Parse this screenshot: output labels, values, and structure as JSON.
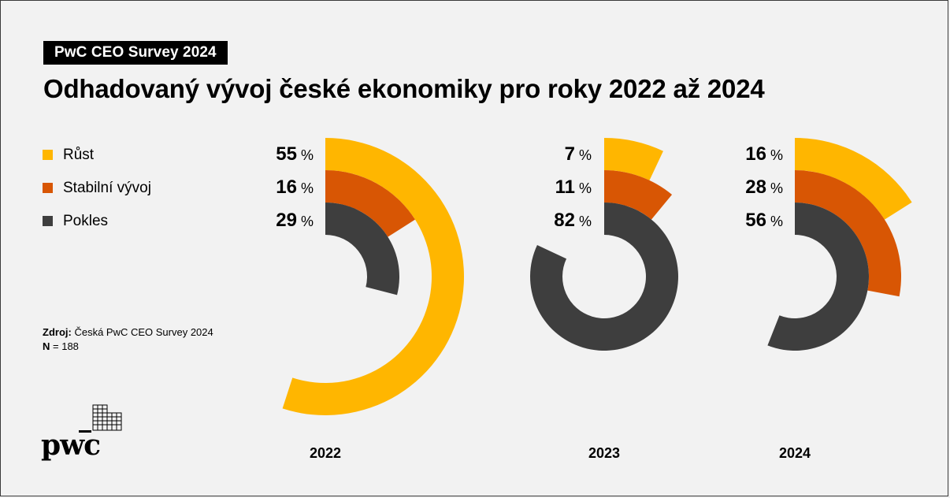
{
  "header": {
    "survey_tag": "PwC CEO Survey 2024",
    "title": "Odhadovaný vývoj české ekonomiky pro roky 2022 až 2024"
  },
  "legend": [
    {
      "label": "Růst",
      "color": "#FFB600"
    },
    {
      "label": "Stabilní vývoj",
      "color": "#D85604"
    },
    {
      "label": "Pokles",
      "color": "#3E3E3E"
    }
  ],
  "source": {
    "label": "Zdroj:",
    "text": "Česká PwC CEO Survey 2024",
    "n_label": "N",
    "n_value": "= 188"
  },
  "logo": {
    "text": "pwc"
  },
  "chart_data": {
    "type": "radial-bar",
    "unit": "%",
    "series_names": [
      "Růst",
      "Stabilní vývoj",
      "Pokles"
    ],
    "colors": [
      "#FFB600",
      "#D85604",
      "#3E3E3E"
    ],
    "groups": [
      {
        "year": "2022",
        "values": [
          55,
          16,
          29
        ]
      },
      {
        "year": "2023",
        "values": [
          7,
          11,
          82
        ]
      },
      {
        "year": "2024",
        "values": [
          16,
          28,
          56
        ]
      }
    ]
  }
}
